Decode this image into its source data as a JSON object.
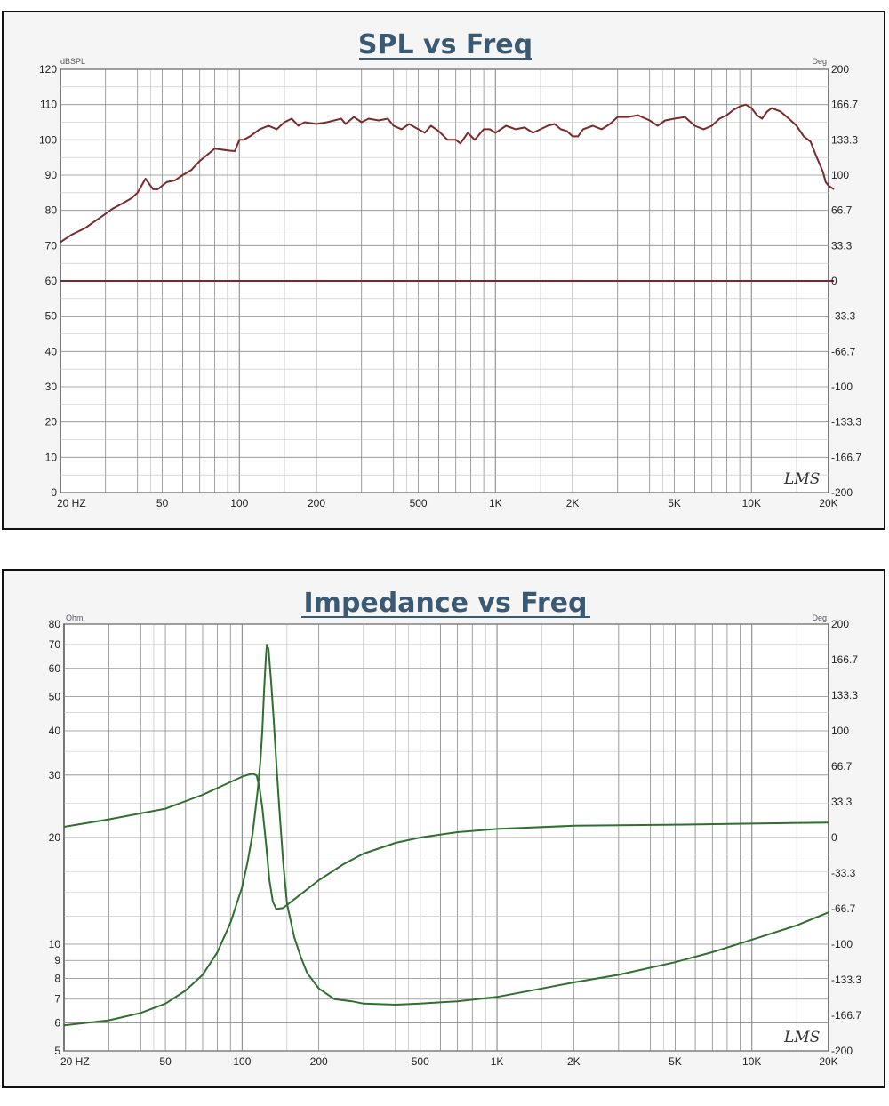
{
  "charts": {
    "spl": {
      "title": "SPL vs Freq",
      "left_unit": "dBSPL",
      "right_unit": "Deg",
      "logo": "LMS",
      "line_color": "#7a2a2a"
    },
    "impedance": {
      "title": "Impedance vs Freq",
      "left_unit": "Ohm",
      "right_unit": "Deg",
      "logo": "LMS",
      "line_color": "#2f6f2f"
    }
  },
  "chart_data": [
    {
      "type": "line",
      "title": "SPL vs Freq",
      "xscale": "log",
      "xlim": [
        20,
        20000
      ],
      "x_tick_labels": [
        {
          "value": 20,
          "label": "20 HZ"
        },
        {
          "value": 50,
          "label": "50"
        },
        {
          "value": 100,
          "label": "100"
        },
        {
          "value": 200,
          "label": "200"
        },
        {
          "value": 500,
          "label": "500"
        },
        {
          "value": 1000,
          "label": "1K"
        },
        {
          "value": 2000,
          "label": "2K"
        },
        {
          "value": 5000,
          "label": "5K"
        },
        {
          "value": 10000,
          "label": "10K"
        },
        {
          "value": 20000,
          "label": "20K"
        }
      ],
      "ylabel_left": "dBSPL",
      "ylim_left": [
        0,
        120
      ],
      "y_ticks_left": [
        "0",
        "10",
        "20",
        "30",
        "40",
        "50",
        "60",
        "70",
        "80",
        "90",
        "100",
        "110",
        "120"
      ],
      "ylabel_right": "Deg",
      "ylim_right": [
        -200,
        200
      ],
      "y_ticks_right": [
        "-200",
        "-166.7",
        "-133.3",
        "-100",
        "-66.7",
        "-33.3",
        "0",
        "33.3",
        "66.7",
        "100",
        "133.3",
        "166.7",
        "200"
      ],
      "grid": true,
      "series": [
        {
          "axis": "left",
          "points": [
            [
              20,
              71
            ],
            [
              22,
              73
            ],
            [
              25,
              75
            ],
            [
              28,
              77.5
            ],
            [
              30,
              79
            ],
            [
              32,
              80.5
            ],
            [
              35,
              82
            ],
            [
              38,
              83.5
            ],
            [
              40,
              85
            ],
            [
              43,
              89
            ],
            [
              46,
              86
            ],
            [
              48,
              86
            ],
            [
              52,
              88
            ],
            [
              56,
              88.5
            ],
            [
              60,
              90
            ],
            [
              65,
              91.5
            ],
            [
              70,
              94
            ],
            [
              80,
              97.5
            ],
            [
              90,
              97
            ],
            [
              96,
              96.8
            ],
            [
              100,
              100
            ],
            [
              104,
              100
            ],
            [
              110,
              101
            ],
            [
              120,
              103
            ],
            [
              130,
              104
            ],
            [
              140,
              103
            ],
            [
              150,
              105
            ],
            [
              160,
              106
            ],
            [
              170,
              104
            ],
            [
              180,
              105
            ],
            [
              200,
              104.5
            ],
            [
              220,
              105
            ],
            [
              250,
              106
            ],
            [
              260,
              104.5
            ],
            [
              280,
              106.5
            ],
            [
              300,
              105
            ],
            [
              320,
              106
            ],
            [
              350,
              105.5
            ],
            [
              380,
              106
            ],
            [
              400,
              104
            ],
            [
              430,
              103
            ],
            [
              460,
              104.5
            ],
            [
              500,
              103
            ],
            [
              530,
              102
            ],
            [
              560,
              104
            ],
            [
              600,
              102.5
            ],
            [
              650,
              100
            ],
            [
              700,
              100
            ],
            [
              730,
              99
            ],
            [
              780,
              102
            ],
            [
              830,
              100
            ],
            [
              900,
              103
            ],
            [
              950,
              103
            ],
            [
              1000,
              102
            ],
            [
              1100,
              104
            ],
            [
              1200,
              103
            ],
            [
              1300,
              103.5
            ],
            [
              1400,
              102
            ],
            [
              1500,
              103
            ],
            [
              1600,
              104
            ],
            [
              1700,
              104.5
            ],
            [
              1800,
              103
            ],
            [
              1900,
              102.5
            ],
            [
              2000,
              101
            ],
            [
              2100,
              101
            ],
            [
              2200,
              103
            ],
            [
              2400,
              104
            ],
            [
              2600,
              103
            ],
            [
              2800,
              104.5
            ],
            [
              3000,
              106.5
            ],
            [
              3300,
              106.5
            ],
            [
              3600,
              107
            ],
            [
              4000,
              105.5
            ],
            [
              4300,
              104
            ],
            [
              4600,
              105.5
            ],
            [
              5000,
              106
            ],
            [
              5500,
              106.5
            ],
            [
              6000,
              104
            ],
            [
              6500,
              103
            ],
            [
              7000,
              104
            ],
            [
              7500,
              106
            ],
            [
              8000,
              107
            ],
            [
              8500,
              108.5
            ],
            [
              9000,
              109.5
            ],
            [
              9500,
              110
            ],
            [
              10000,
              109
            ],
            [
              10500,
              107
            ],
            [
              11000,
              106
            ],
            [
              11500,
              108
            ],
            [
              12000,
              109
            ],
            [
              13000,
              108
            ],
            [
              14000,
              106
            ],
            [
              15000,
              104
            ],
            [
              16000,
              101
            ],
            [
              17000,
              99.5
            ],
            [
              18000,
              95
            ],
            [
              19000,
              91
            ],
            [
              19500,
              88
            ],
            [
              20000,
              87
            ],
            [
              21000,
              86
            ]
          ]
        },
        {
          "axis": "right",
          "points": [
            [
              20,
              0
            ],
            [
              21000,
              0
            ]
          ]
        }
      ]
    },
    {
      "type": "line",
      "title": "Impedance vs Freq",
      "xscale": "log",
      "xlim": [
        20,
        20000
      ],
      "x_tick_labels": [
        {
          "value": 20,
          "label": "20 HZ"
        },
        {
          "value": 50,
          "label": "50"
        },
        {
          "value": 100,
          "label": "100"
        },
        {
          "value": 200,
          "label": "200"
        },
        {
          "value": 500,
          "label": "500"
        },
        {
          "value": 1000,
          "label": "1K"
        },
        {
          "value": 2000,
          "label": "2K"
        },
        {
          "value": 5000,
          "label": "5K"
        },
        {
          "value": 10000,
          "label": "10K"
        },
        {
          "value": 20000,
          "label": "20K"
        }
      ],
      "ylabel_left": "Ohm",
      "yscale_left": "log",
      "ylim_left": [
        5,
        80
      ],
      "y_ticks_left": [
        "5",
        "6",
        "7",
        "8",
        "9",
        "10",
        "20",
        "30",
        "40",
        "50",
        "60",
        "70",
        "80"
      ],
      "ylabel_right": "Deg",
      "ylim_right": [
        -200,
        200
      ],
      "y_ticks_right": [
        "-200",
        "-166.7",
        "-133.3",
        "-100",
        "-66.7",
        "-33.3",
        "0",
        "33.3",
        "66.7",
        "100",
        "133.3",
        "166.7",
        "200"
      ],
      "grid": true,
      "series": [
        {
          "axis": "left",
          "points": [
            [
              20,
              5.9
            ],
            [
              30,
              6.1
            ],
            [
              40,
              6.4
            ],
            [
              50,
              6.8
            ],
            [
              60,
              7.4
            ],
            [
              70,
              8.2
            ],
            [
              80,
              9.5
            ],
            [
              90,
              11.5
            ],
            [
              100,
              14.5
            ],
            [
              105,
              17
            ],
            [
              110,
              20.5
            ],
            [
              115,
              27
            ],
            [
              118,
              33
            ],
            [
              120,
              40
            ],
            [
              122,
              52
            ],
            [
              124,
              65
            ],
            [
              125,
              70
            ],
            [
              127,
              68
            ],
            [
              130,
              55
            ],
            [
              133,
              43
            ],
            [
              136,
              33
            ],
            [
              140,
              24
            ],
            [
              145,
              17
            ],
            [
              150,
              13
            ],
            [
              160,
              10.5
            ],
            [
              170,
              9.2
            ],
            [
              180,
              8.3
            ],
            [
              200,
              7.5
            ],
            [
              230,
              7
            ],
            [
              270,
              6.9
            ],
            [
              300,
              6.8
            ],
            [
              400,
              6.75
            ],
            [
              500,
              6.8
            ],
            [
              700,
              6.9
            ],
            [
              1000,
              7.1
            ],
            [
              1500,
              7.5
            ],
            [
              2000,
              7.8
            ],
            [
              3000,
              8.2
            ],
            [
              5000,
              8.9
            ],
            [
              7000,
              9.5
            ],
            [
              10000,
              10.3
            ],
            [
              15000,
              11.3
            ],
            [
              20000,
              12.3
            ]
          ]
        },
        {
          "axis": "right",
          "points": [
            [
              20,
              10
            ],
            [
              30,
              17
            ],
            [
              50,
              27
            ],
            [
              70,
              40
            ],
            [
              90,
              52
            ],
            [
              100,
              57
            ],
            [
              110,
              60
            ],
            [
              114,
              58
            ],
            [
              117,
              47
            ],
            [
              120,
              28
            ],
            [
              124,
              -5
            ],
            [
              128,
              -40
            ],
            [
              132,
              -60
            ],
            [
              136,
              -67
            ],
            [
              145,
              -66
            ],
            [
              160,
              -58
            ],
            [
              200,
              -40
            ],
            [
              250,
              -25
            ],
            [
              300,
              -15
            ],
            [
              400,
              -5
            ],
            [
              500,
              0
            ],
            [
              700,
              5
            ],
            [
              1000,
              8
            ],
            [
              2000,
              11
            ],
            [
              5000,
              12
            ],
            [
              10000,
              13
            ],
            [
              20000,
              14
            ]
          ]
        }
      ]
    }
  ]
}
